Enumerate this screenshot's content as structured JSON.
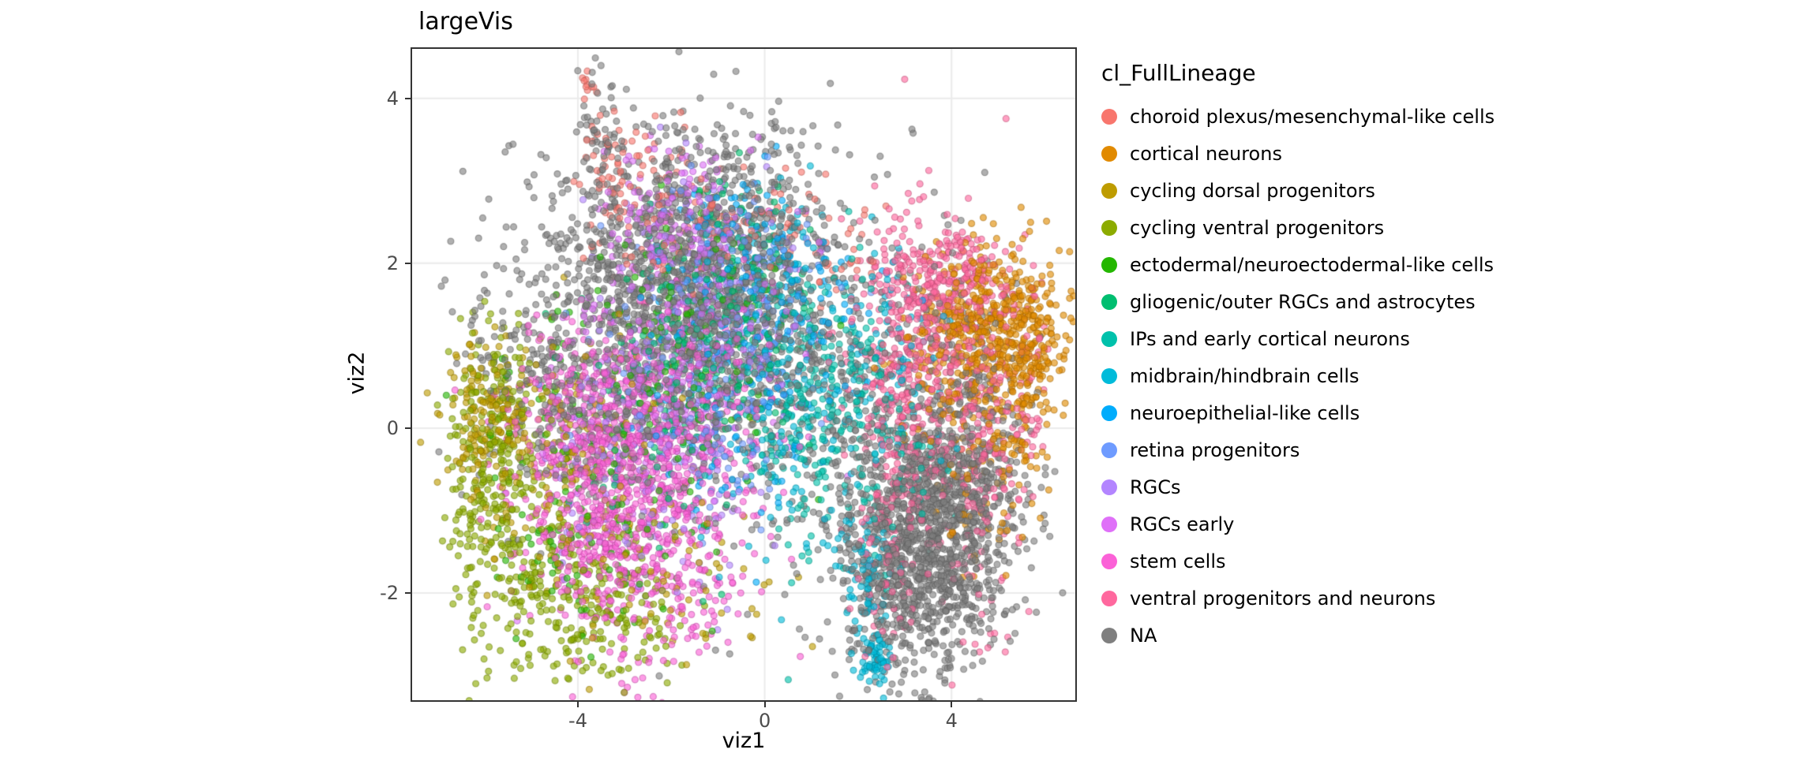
{
  "page": {
    "background": "#FFFFFF"
  },
  "chart_data": {
    "type": "scatter",
    "title": "largeVis",
    "xlabel": "viz1",
    "ylabel": "viz2",
    "legend_title": "cl_FullLineage",
    "legend_position": "right",
    "xlim": [
      -7.55,
      6.65
    ],
    "ylim": [
      -3.3,
      4.6
    ],
    "x_ticks": [
      -4,
      0,
      4
    ],
    "y_ticks": [
      -2,
      0,
      2,
      4
    ],
    "grid": "major",
    "point": {
      "radius": 4,
      "alpha": 0.62
    },
    "style": {
      "panel_bg": "#FFFFFF",
      "grid_color": "#EBEBEB",
      "panel_border": "#333333",
      "tick_label_color": "#4D4D4D",
      "text_color": "#000000",
      "na_color": "#7F7F7F"
    },
    "cluster_fields": [
      "cx",
      "cy",
      "sx",
      "sy",
      "n"
    ],
    "series": [
      {
        "name": "choroid plexus/mesenchymal-like cells",
        "color": "#F8766D",
        "clusters": [
          [
            -3.85,
            4.15,
            0.08,
            0.08,
            10
          ],
          [
            -3.4,
            3.2,
            0.3,
            0.5,
            45
          ],
          [
            -2.3,
            2.9,
            0.5,
            0.35,
            45
          ],
          [
            -1.4,
            2.3,
            0.9,
            0.45,
            60
          ],
          [
            0.4,
            2.6,
            0.5,
            0.3,
            20
          ],
          [
            1.5,
            2.2,
            0.5,
            0.35,
            30
          ]
        ]
      },
      {
        "name": "cortical neurons",
        "color": "#E18A00",
        "clusters": [
          [
            4.9,
            1.2,
            0.75,
            0.5,
            430
          ],
          [
            5.7,
            0.9,
            0.35,
            0.55,
            120
          ],
          [
            3.9,
            0.7,
            0.6,
            0.6,
            110
          ],
          [
            5.1,
            -0.1,
            0.4,
            0.5,
            60
          ],
          [
            4.6,
            -1.1,
            0.5,
            0.5,
            30
          ]
        ]
      },
      {
        "name": "cycling dorsal progenitors",
        "color": "#BE9C00",
        "clusters": [
          [
            -6.0,
            0.15,
            0.45,
            0.5,
            140
          ],
          [
            -4.9,
            -0.4,
            0.8,
            0.8,
            110
          ],
          [
            -2.4,
            -1.6,
            1.3,
            0.7,
            80
          ],
          [
            -3.6,
            0.4,
            0.8,
            0.6,
            50
          ]
        ]
      },
      {
        "name": "cycling ventral progenitors",
        "color": "#8CAB00",
        "clusters": [
          [
            -5.85,
            -0.7,
            0.5,
            0.9,
            240
          ],
          [
            -4.6,
            -1.8,
            0.85,
            0.65,
            200
          ],
          [
            -3.1,
            -2.3,
            0.9,
            0.45,
            110
          ],
          [
            -5.6,
            0.4,
            0.5,
            0.4,
            60
          ]
        ]
      },
      {
        "name": "ectodermal/neuroectodermal-like cells",
        "color": "#24B700",
        "clusters": [
          [
            -3.0,
            0.1,
            1.5,
            1.2,
            150
          ],
          [
            -1.2,
            1.6,
            0.9,
            0.8,
            60
          ],
          [
            -4.3,
            -1.5,
            0.7,
            0.6,
            40
          ]
        ]
      },
      {
        "name": "gliogenic/outer RGCs and astrocytes",
        "color": "#00BE70",
        "clusters": [
          [
            -0.9,
            1.3,
            0.8,
            0.7,
            170
          ],
          [
            -2.1,
            0.3,
            1.0,
            0.8,
            110
          ],
          [
            -0.2,
            2.3,
            0.5,
            0.4,
            30
          ]
        ]
      },
      {
        "name": "IPs and early cortical neurons",
        "color": "#00C1AB",
        "clusters": [
          [
            0.9,
            -0.1,
            0.5,
            0.8,
            120
          ],
          [
            1.8,
            0.6,
            0.5,
            0.7,
            100
          ],
          [
            0.1,
            1.0,
            0.8,
            0.8,
            80
          ],
          [
            2.8,
            -0.6,
            0.5,
            0.7,
            50
          ]
        ]
      },
      {
        "name": "midbrain/hindbrain cells",
        "color": "#00BBDA",
        "clusters": [
          [
            2.35,
            -2.85,
            0.17,
            0.17,
            55
          ],
          [
            2.15,
            -1.9,
            0.3,
            0.55,
            80
          ],
          [
            0.4,
            0.3,
            0.7,
            0.9,
            120
          ],
          [
            0.3,
            2.0,
            0.5,
            0.45,
            55
          ],
          [
            2.5,
            0.6,
            0.6,
            0.8,
            80
          ]
        ]
      },
      {
        "name": "neuroepithelial-like cells",
        "color": "#00ACFC",
        "clusters": [
          [
            -0.5,
            0.8,
            1.0,
            0.9,
            140
          ],
          [
            -0.8,
            2.4,
            0.7,
            0.4,
            50
          ],
          [
            1.0,
            1.5,
            0.8,
            0.6,
            50
          ]
        ]
      },
      {
        "name": "retina progenitors",
        "color": "#6E9BFF",
        "clusters": [
          [
            -1.5,
            0.5,
            1.1,
            0.8,
            140
          ],
          [
            -0.4,
            1.8,
            0.8,
            0.6,
            90
          ]
        ]
      },
      {
        "name": "RGCs",
        "color": "#B385FF",
        "clusters": [
          [
            -1.3,
            1.5,
            1.0,
            0.8,
            190
          ],
          [
            -2.6,
            -0.4,
            1.2,
            0.8,
            140
          ]
        ]
      },
      {
        "name": "RGCs early",
        "color": "#DF70F8",
        "clusters": [
          [
            -1.8,
            2.6,
            0.8,
            0.5,
            140
          ],
          [
            -1.6,
            1.0,
            1.2,
            0.9,
            190
          ],
          [
            -3.0,
            0.0,
            1.0,
            0.8,
            100
          ]
        ]
      },
      {
        "name": "stem cells",
        "color": "#FB61D7",
        "clusters": [
          [
            -3.0,
            -0.9,
            1.15,
            0.85,
            780
          ],
          [
            -3.6,
            0.3,
            0.9,
            0.5,
            200
          ],
          [
            -1.6,
            0.2,
            1.1,
            0.8,
            200
          ],
          [
            -2.2,
            -2.0,
            0.8,
            0.4,
            60
          ]
        ]
      },
      {
        "name": "ventral progenitors and neurons",
        "color": "#FF689E",
        "clusters": [
          [
            3.1,
            0.3,
            0.6,
            1.1,
            380
          ],
          [
            3.6,
            1.6,
            0.7,
            0.45,
            200
          ],
          [
            4.6,
            -0.3,
            0.4,
            1.1,
            180
          ],
          [
            4.3,
            1.9,
            0.5,
            0.3,
            80
          ],
          [
            5.6,
            0.5,
            0.3,
            0.8,
            60
          ],
          [
            2.6,
            -1.5,
            0.4,
            0.6,
            60
          ]
        ]
      },
      {
        "name": "NA",
        "color": "#7F7F7F",
        "clusters": [
          [
            -1.5,
            2.0,
            1.6,
            0.8,
            850
          ],
          [
            -1.0,
            0.8,
            1.8,
            0.9,
            650
          ],
          [
            -4.3,
            0.9,
            1.0,
            0.7,
            280
          ],
          [
            3.4,
            -1.2,
            0.9,
            0.8,
            1050
          ],
          [
            4.3,
            -0.5,
            0.7,
            0.9,
            320
          ],
          [
            3.0,
            -2.1,
            0.7,
            0.5,
            220
          ],
          [
            0.2,
            0.6,
            3.0,
            1.4,
            260
          ],
          [
            -3.5,
            3.3,
            0.25,
            0.6,
            60
          ],
          [
            -0.5,
            3.2,
            0.8,
            0.35,
            60
          ]
        ]
      }
    ]
  }
}
